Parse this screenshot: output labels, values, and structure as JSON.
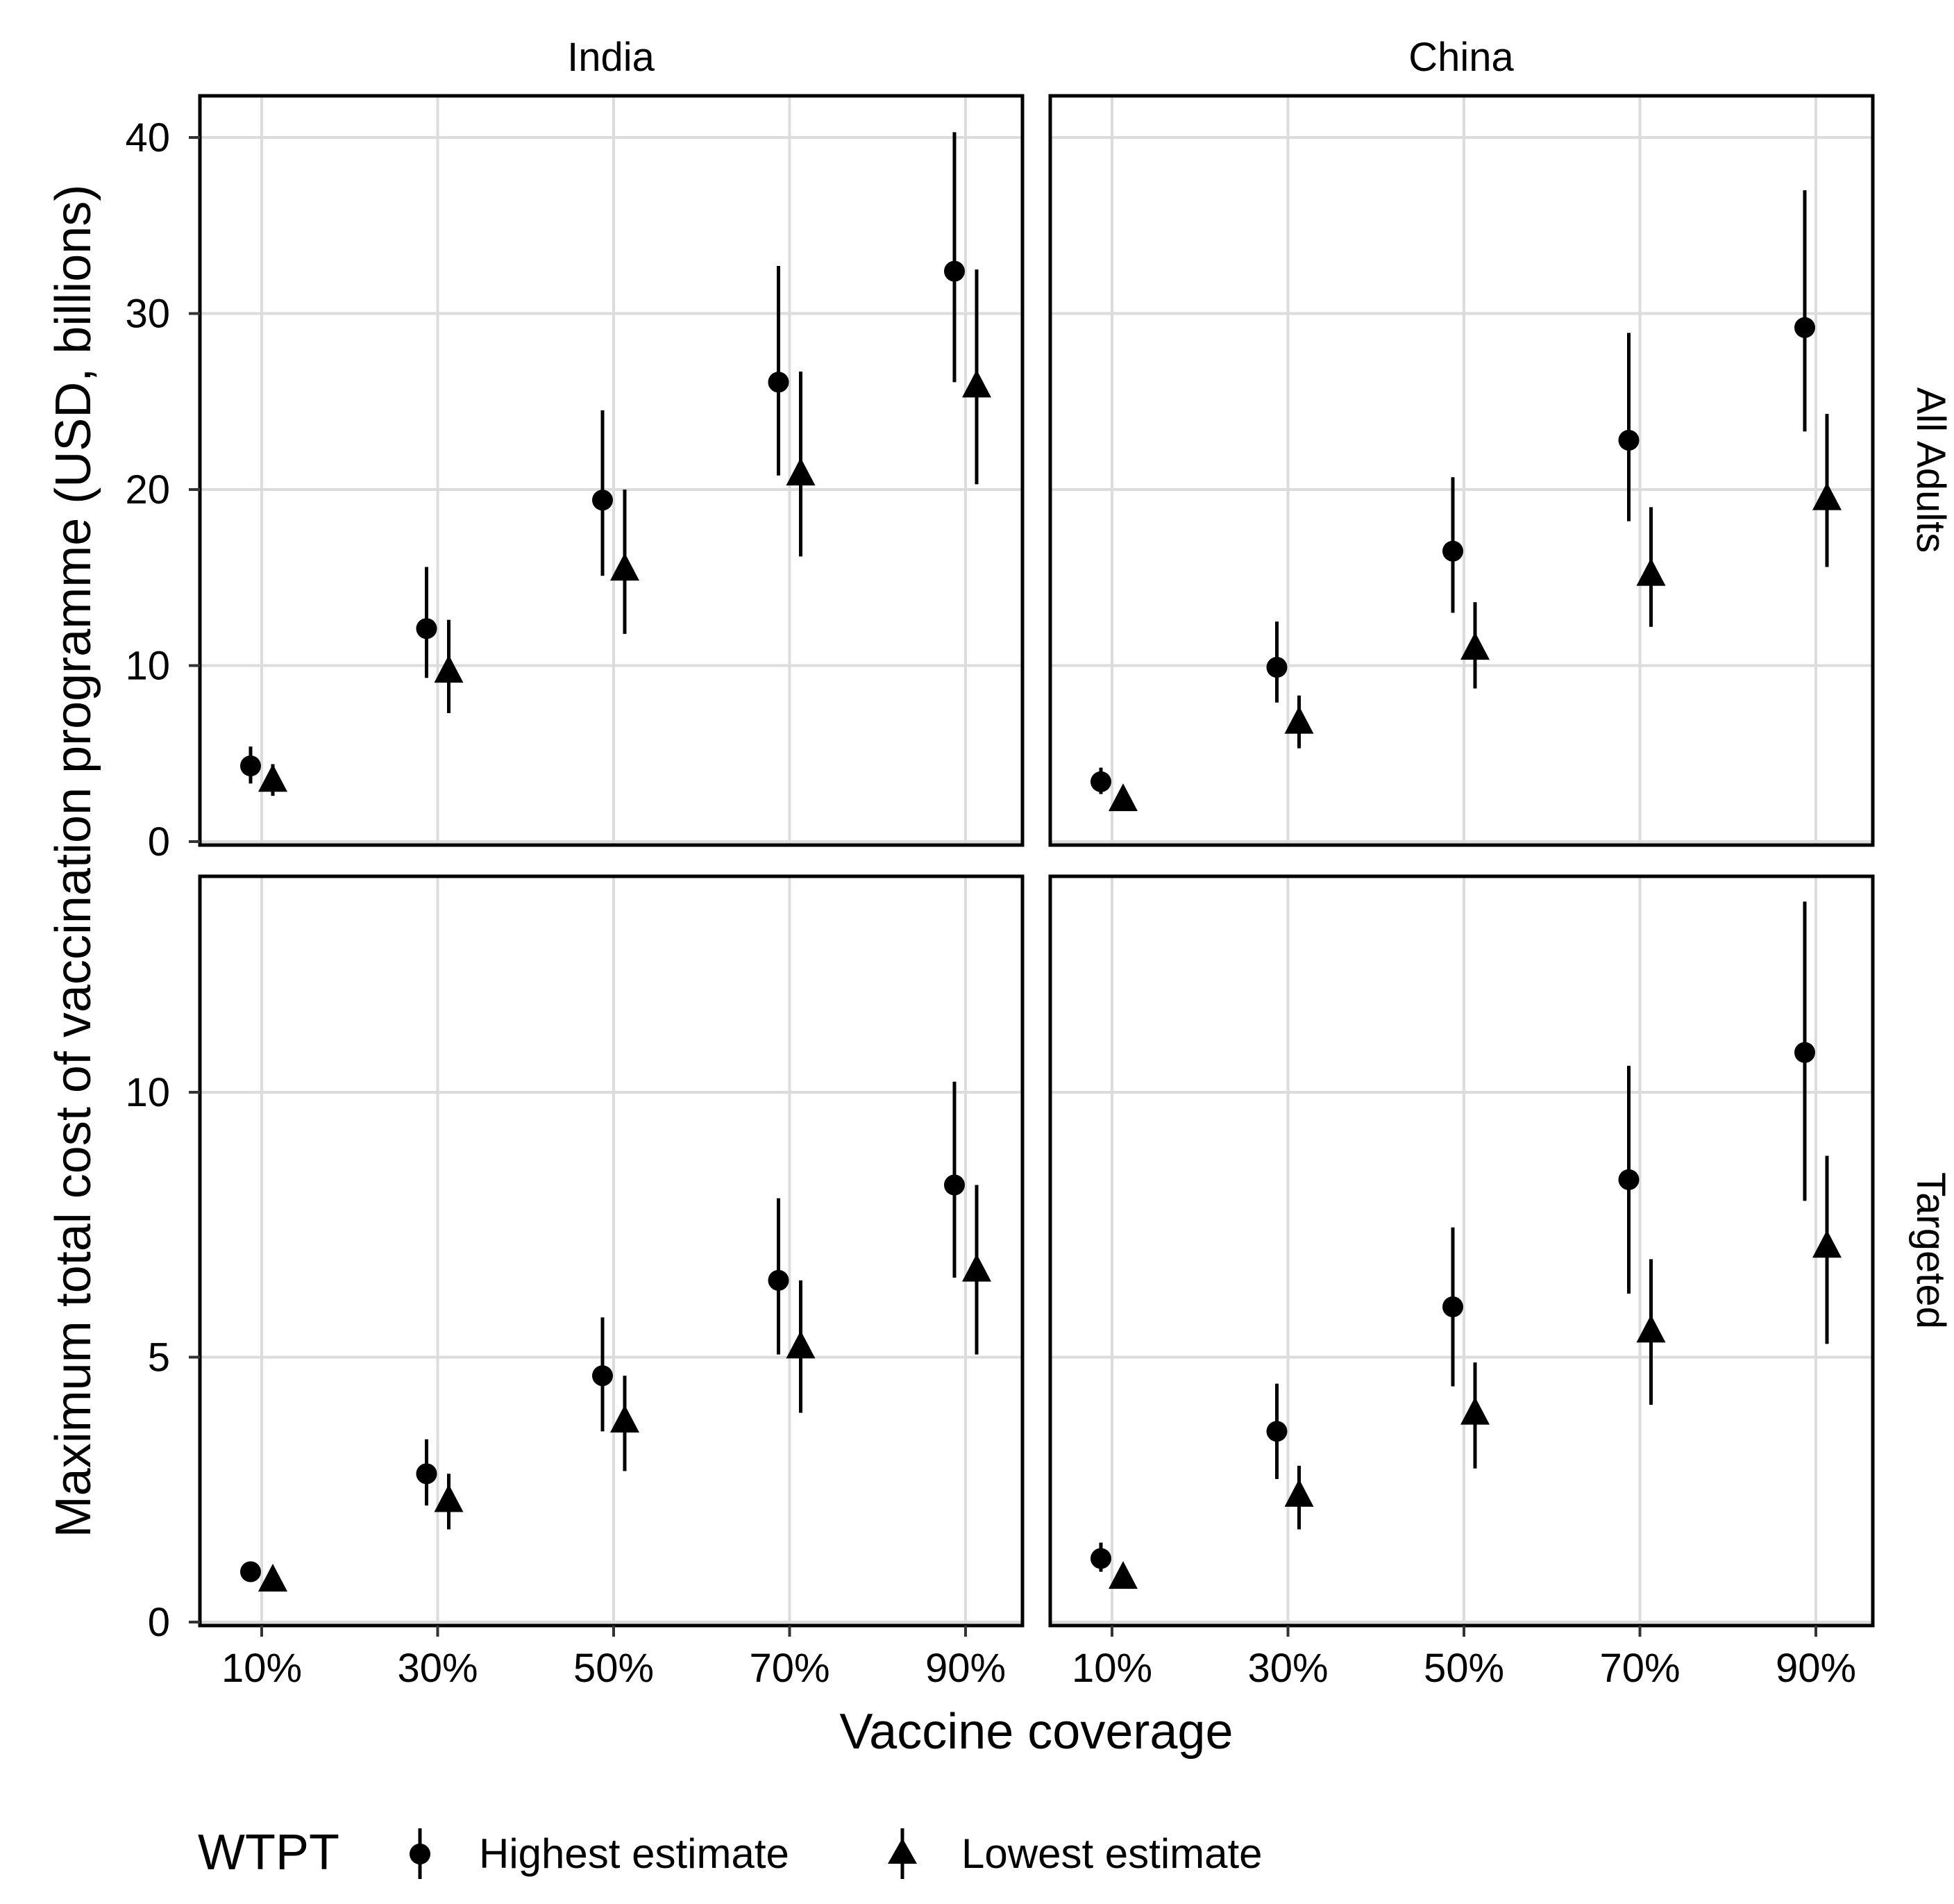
{
  "chart_data": {
    "type": "pointrange",
    "xlabel": "Vaccine coverage",
    "ylabel": "Maximum total cost of vaccination programme (USD, billions)",
    "categories": [
      "10%",
      "30%",
      "50%",
      "70%",
      "90%"
    ],
    "columns": [
      "India",
      "China"
    ],
    "rows": [
      "All Adults",
      "Targeted"
    ],
    "legend": {
      "title": "WTPT",
      "position": "bottom",
      "entries": [
        {
          "name": "Highest estimate",
          "shape": "circle"
        },
        {
          "name": "Lowest estimate",
          "shape": "triangle"
        }
      ]
    },
    "y_axes": [
      {
        "row": "All Adults",
        "ylim": [
          0,
          42
        ],
        "ticks": [
          0,
          10,
          20,
          30,
          40
        ]
      },
      {
        "row": "Targeted",
        "ylim": [
          0,
          14
        ],
        "ticks": [
          0,
          5,
          10
        ]
      }
    ],
    "panels": [
      {
        "column": "India",
        "row": "All Adults",
        "series": [
          {
            "name": "Highest estimate",
            "values": [
              4.3,
              12.1,
              19.4,
              26.1,
              32.4
            ],
            "lower": [
              3.3,
              9.3,
              15.1,
              20.8,
              26.1
            ],
            "upper": [
              5.4,
              15.6,
              24.5,
              32.7,
              40.3
            ]
          },
          {
            "name": "Lowest estimate",
            "values": [
              3.5,
              9.7,
              15.5,
              20.9,
              25.9
            ],
            "lower": [
              2.6,
              7.3,
              11.8,
              16.2,
              20.3
            ],
            "upper": [
              4.4,
              12.6,
              20.0,
              26.7,
              32.5
            ]
          }
        ]
      },
      {
        "column": "China",
        "row": "All Adults",
        "series": [
          {
            "name": "Highest estimate",
            "values": [
              3.4,
              9.9,
              16.5,
              22.8,
              29.2
            ],
            "lower": [
              2.7,
              7.9,
              13.0,
              18.2,
              23.3
            ],
            "upper": [
              4.2,
              12.5,
              20.7,
              28.9,
              37.0
            ]
          },
          {
            "name": "Lowest estimate",
            "values": [
              2.4,
              6.8,
              11.0,
              15.2,
              19.5
            ],
            "lower": [
              1.9,
              5.3,
              8.7,
              12.2,
              15.6
            ],
            "upper": [
              3.0,
              8.3,
              13.6,
              19.0,
              24.3
            ]
          }
        ]
      },
      {
        "column": "India",
        "row": "Targeted",
        "series": [
          {
            "name": "Highest estimate",
            "values": [
              0.95,
              2.8,
              4.65,
              6.45,
              8.25
            ],
            "lower": [
              0.85,
              2.2,
              3.6,
              5.05,
              6.5
            ],
            "upper": [
              1.05,
              3.45,
              5.75,
              8.0,
              10.2
            ]
          },
          {
            "name": "Lowest estimate",
            "values": [
              0.8,
              2.3,
              3.8,
              5.2,
              6.65
            ],
            "lower": [
              0.7,
              1.75,
              2.85,
              3.95,
              5.05
            ],
            "upper": [
              0.95,
              2.8,
              4.65,
              6.45,
              8.25
            ]
          }
        ]
      },
      {
        "column": "China",
        "row": "Targeted",
        "series": [
          {
            "name": "Highest estimate",
            "values": [
              1.2,
              3.6,
              5.95,
              8.35,
              10.75
            ],
            "lower": [
              0.95,
              2.7,
              4.45,
              6.2,
              7.95
            ],
            "upper": [
              1.5,
              4.5,
              7.45,
              10.5,
              13.6
            ]
          },
          {
            "name": "Lowest estimate",
            "values": [
              0.85,
              2.4,
              3.95,
              5.5,
              7.1
            ],
            "lower": [
              0.7,
              1.75,
              2.9,
              4.1,
              5.25
            ],
            "upper": [
              1.05,
              2.95,
              4.9,
              6.85,
              8.8
            ]
          }
        ]
      }
    ]
  }
}
